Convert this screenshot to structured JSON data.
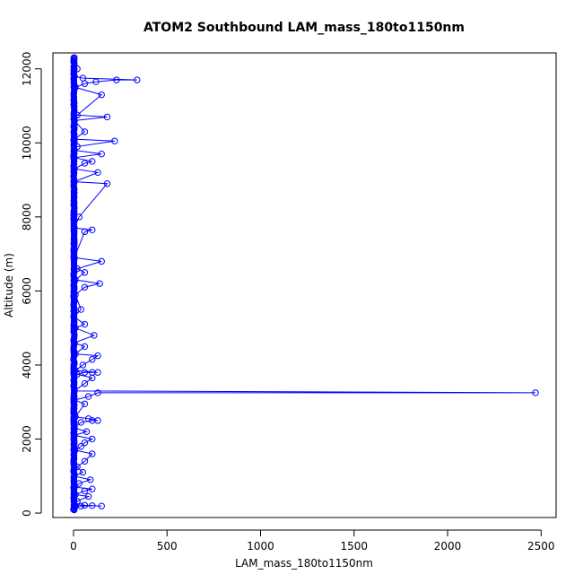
{
  "chart_data": {
    "type": "line",
    "title": "ATOM2 Southbound LAM_mass_180to1150nm",
    "xlabel": "LAM_mass_180to1150nm",
    "ylabel": "Altitude (m)",
    "xlim": [
      -110,
      2580
    ],
    "ylim": [
      -120,
      12430
    ],
    "xticks": [
      0,
      500,
      1000,
      1500,
      2000,
      2500
    ],
    "yticks": [
      0,
      2000,
      4000,
      6000,
      8000,
      10000,
      12000
    ],
    "grid": false,
    "legend": "none",
    "colors": {
      "series": "#0000ff",
      "axis": "#000000"
    },
    "series": [
      {
        "points": [
          [
            0,
            100
          ],
          [
            3,
            200
          ],
          [
            10,
            180
          ],
          [
            40,
            190
          ],
          [
            100,
            200
          ],
          [
            150,
            190
          ],
          [
            60,
            210
          ],
          [
            5,
            230
          ],
          [
            20,
            320
          ],
          [
            80,
            450
          ],
          [
            10,
            500
          ],
          [
            60,
            600
          ],
          [
            100,
            650
          ],
          [
            5,
            700
          ],
          [
            30,
            800
          ],
          [
            90,
            900
          ],
          [
            3,
            1000
          ],
          [
            50,
            1100
          ],
          [
            20,
            1250
          ],
          [
            60,
            1400
          ],
          [
            100,
            1600
          ],
          [
            8,
            1700
          ],
          [
            40,
            1800
          ],
          [
            60,
            1900
          ],
          [
            100,
            2000
          ],
          [
            5,
            2100
          ],
          [
            70,
            2200
          ],
          [
            5,
            2300
          ],
          [
            40,
            2450
          ],
          [
            100,
            2500
          ],
          [
            130,
            2500
          ],
          [
            80,
            2550
          ],
          [
            10,
            2600
          ],
          [
            60,
            2950
          ],
          [
            5,
            3050
          ],
          [
            80,
            3150
          ],
          [
            130,
            3250
          ],
          [
            2470,
            3250
          ],
          [
            5,
            3300
          ],
          [
            60,
            3500
          ],
          [
            100,
            3650
          ],
          [
            20,
            3750
          ],
          [
            60,
            3800
          ],
          [
            100,
            3800
          ],
          [
            130,
            3800
          ],
          [
            10,
            3850
          ],
          [
            50,
            4000
          ],
          [
            100,
            4150
          ],
          [
            130,
            4250
          ],
          [
            10,
            4300
          ],
          [
            60,
            4500
          ],
          [
            5,
            4600
          ],
          [
            110,
            4800
          ],
          [
            10,
            5000
          ],
          [
            60,
            5100
          ],
          [
            3,
            5300
          ],
          [
            40,
            5500
          ],
          [
            10,
            5900
          ],
          [
            60,
            6100
          ],
          [
            140,
            6200
          ],
          [
            10,
            6300
          ],
          [
            60,
            6500
          ],
          [
            20,
            6600
          ],
          [
            150,
            6800
          ],
          [
            5,
            6900
          ],
          [
            60,
            7600
          ],
          [
            100,
            7650
          ],
          [
            5,
            7700
          ],
          [
            30,
            8000
          ],
          [
            180,
            8900
          ],
          [
            5,
            8950
          ],
          [
            130,
            9200
          ],
          [
            5,
            9300
          ],
          [
            60,
            9450
          ],
          [
            100,
            9500
          ],
          [
            5,
            9600
          ],
          [
            150,
            9700
          ],
          [
            5,
            9800
          ],
          [
            20,
            9900
          ],
          [
            220,
            10050
          ],
          [
            5,
            10100
          ],
          [
            60,
            10300
          ],
          [
            5,
            10600
          ],
          [
            180,
            10700
          ],
          [
            20,
            10750
          ],
          [
            150,
            11300
          ],
          [
            10,
            11500
          ],
          [
            60,
            11600
          ],
          [
            120,
            11650
          ],
          [
            230,
            11700
          ],
          [
            340,
            11700
          ],
          [
            50,
            11750
          ],
          [
            5,
            11800
          ],
          [
            20,
            12000
          ],
          [
            3,
            12200
          ],
          [
            2,
            12300
          ]
        ]
      }
    ]
  }
}
